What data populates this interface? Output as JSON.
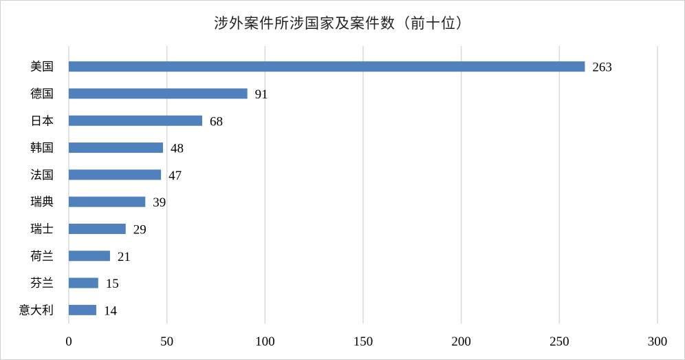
{
  "chart_data": {
    "type": "bar",
    "orientation": "horizontal",
    "title": "涉外案件所涉国家及案件数（前十位）",
    "categories": [
      "美国",
      "德国",
      "日本",
      "韩国",
      "法国",
      "瑞典",
      "瑞士",
      "荷兰",
      "芬兰",
      "意大利"
    ],
    "values": [
      263,
      91,
      68,
      48,
      47,
      39,
      29,
      21,
      15,
      14
    ],
    "xlim": [
      0,
      300
    ],
    "xticks": [
      "0",
      "50",
      "100",
      "150",
      "200",
      "250",
      "300"
    ],
    "grid": "vertical",
    "bar_color": "#4f81bd",
    "grid_color": "#d9d9d9",
    "data_labels": true
  }
}
